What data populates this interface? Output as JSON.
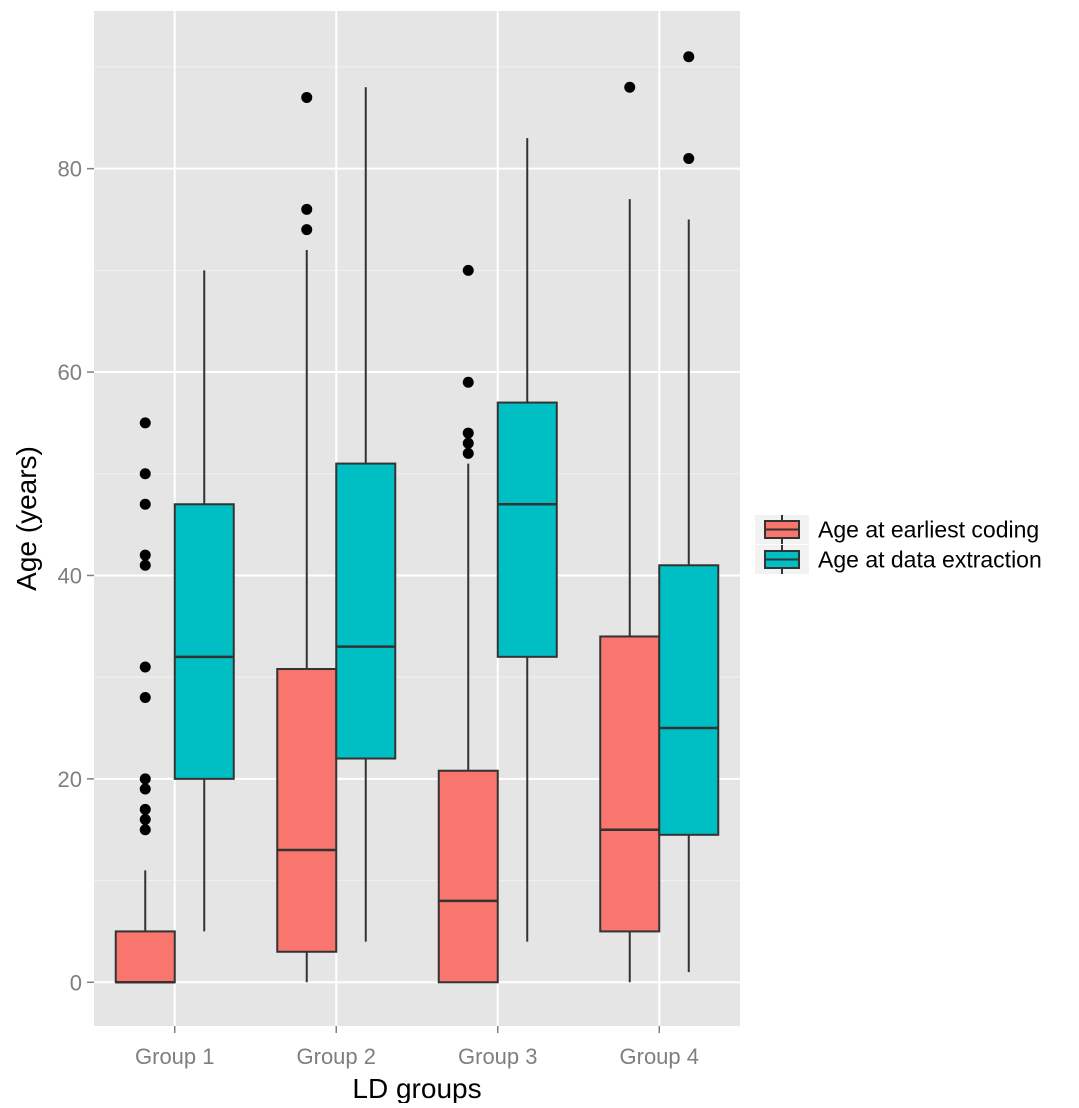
{
  "chart_data": {
    "type": "boxplot",
    "xlabel": "LD groups",
    "ylabel": "Age (years)",
    "ylim": [
      -4.3,
      95.5
    ],
    "yticks": [
      0,
      20,
      40,
      60,
      80
    ],
    "ytick_labels": [
      "0",
      "20",
      "40",
      "60",
      "80"
    ],
    "categories": [
      "Group 1",
      "Group 2",
      "Group 3",
      "Group 4"
    ],
    "grid": true,
    "legend_position": "right",
    "series": [
      {
        "name": "Age at earliest coding",
        "color": "#F8766D",
        "boxes": [
          {
            "category": "Group 1",
            "whisker_low": 0,
            "q1": 0,
            "median": 0,
            "q3": 5,
            "whisker_high": 11,
            "outliers": [
              15,
              16,
              17,
              19,
              20,
              28,
              31,
              41,
              42,
              47,
              50,
              55
            ]
          },
          {
            "category": "Group 2",
            "whisker_low": 0,
            "q1": 3,
            "median": 13,
            "q3": 30.8,
            "whisker_high": 72,
            "outliers": [
              74,
              76,
              87
            ]
          },
          {
            "category": "Group 3",
            "whisker_low": 0,
            "q1": 0,
            "median": 8,
            "q3": 20.8,
            "whisker_high": 51,
            "outliers": [
              52,
              53,
              54,
              59,
              70
            ]
          },
          {
            "category": "Group 4",
            "whisker_low": 0,
            "q1": 5,
            "median": 15,
            "q3": 34,
            "whisker_high": 77,
            "outliers": [
              88
            ]
          }
        ]
      },
      {
        "name": "Age at data extraction",
        "color": "#00BFC4",
        "boxes": [
          {
            "category": "Group 1",
            "whisker_low": 5,
            "q1": 20,
            "median": 32,
            "q3": 47,
            "whisker_high": 70,
            "outliers": []
          },
          {
            "category": "Group 2",
            "whisker_low": 4,
            "q1": 22,
            "median": 33,
            "q3": 51,
            "whisker_high": 88,
            "outliers": []
          },
          {
            "category": "Group 3",
            "whisker_low": 4,
            "q1": 32,
            "median": 47,
            "q3": 57,
            "whisker_high": 83,
            "outliers": []
          },
          {
            "category": "Group 4",
            "whisker_low": 1,
            "q1": 14.5,
            "median": 25,
            "q3": 41,
            "whisker_high": 75,
            "outliers": [
              81,
              91
            ]
          }
        ]
      }
    ]
  }
}
